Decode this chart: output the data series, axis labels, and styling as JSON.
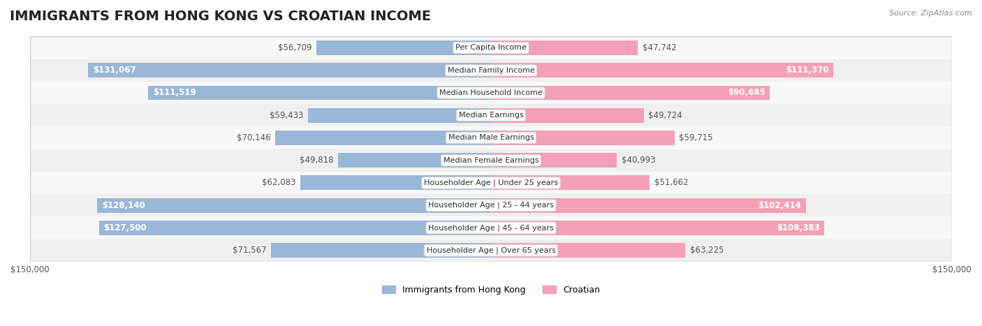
{
  "title": "IMMIGRANTS FROM HONG KONG VS CROATIAN INCOME",
  "source": "Source: ZipAtlas.com",
  "categories": [
    "Per Capita Income",
    "Median Family Income",
    "Median Household Income",
    "Median Earnings",
    "Median Male Earnings",
    "Median Female Earnings",
    "Householder Age | Under 25 years",
    "Householder Age | 25 - 44 years",
    "Householder Age | 45 - 64 years",
    "Householder Age | Over 65 years"
  ],
  "hk_values": [
    56709,
    131067,
    111519,
    59433,
    70146,
    49818,
    62083,
    128140,
    127500,
    71567
  ],
  "cr_values": [
    47742,
    111370,
    90685,
    49724,
    59715,
    40993,
    51662,
    102414,
    108383,
    63225
  ],
  "hk_color": "#9ab7d8",
  "hk_color_dark": "#7baac9",
  "cr_color": "#f4a0b5",
  "cr_color_dark": "#f08098",
  "bg_color": "#f0f0f0",
  "row_bg_light": "#f8f8f8",
  "row_bg_dark": "#efefef",
  "max_val": 150000,
  "xlabel_left": "$150,000",
  "xlabel_right": "$150,000",
  "legend_hk": "Immigrants from Hong Kong",
  "legend_cr": "Croatian",
  "title_fontsize": 14,
  "label_fontsize": 8.5
}
